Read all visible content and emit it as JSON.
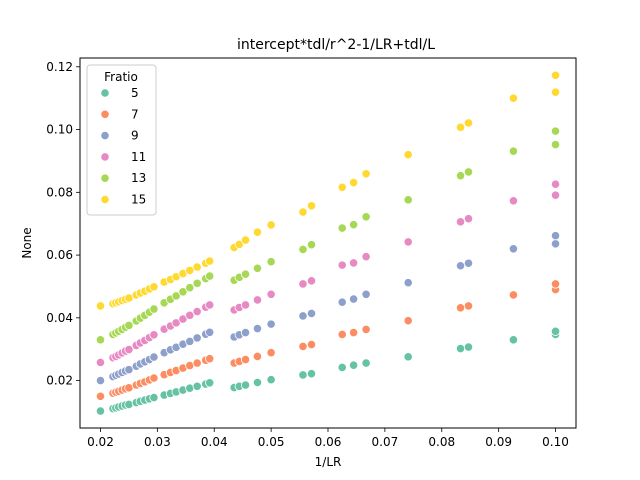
{
  "chart_data": {
    "type": "scatter",
    "title": "intercept*tdl/r^2-1/LR+tdl/L",
    "xlabel": "1/LR",
    "ylabel": "None",
    "xlim": [
      0.0164,
      0.1036
    ],
    "ylim": [
      0.0049,
      0.1228
    ],
    "x_ticks": [
      0.02,
      0.03,
      0.04,
      0.05,
      0.06,
      0.07,
      0.08,
      0.09,
      0.1
    ],
    "x_tick_labels": [
      "0.02",
      "0.03",
      "0.04",
      "0.05",
      "0.06",
      "0.07",
      "0.08",
      "0.09",
      "0.10"
    ],
    "y_ticks": [
      0.02,
      0.04,
      0.06,
      0.08,
      0.1,
      0.12
    ],
    "y_tick_labels": [
      "0.02",
      "0.04",
      "0.06",
      "0.08",
      "0.10",
      "0.12"
    ],
    "grid": false,
    "legend": {
      "title": "Fratio",
      "placement": "top-left"
    },
    "x": [
      0.02,
      0.0222,
      0.0227,
      0.0232,
      0.0238,
      0.0244,
      0.025,
      0.0263,
      0.027,
      0.0278,
      0.0286,
      0.0294,
      0.0312,
      0.0323,
      0.0333,
      0.0345,
      0.0357,
      0.037,
      0.0385,
      0.0392,
      0.0435,
      0.0444,
      0.0455,
      0.0476,
      0.05,
      0.0556,
      0.0571,
      0.0625,
      0.0645,
      0.0667,
      0.0741,
      0.0833,
      0.0847,
      0.0926,
      0.1,
      0.1
    ],
    "series": [
      {
        "name": "5",
        "color": "#66c2a5",
        "values": [
          0.0103,
          0.0111,
          0.0113,
          0.0116,
          0.0119,
          0.0122,
          0.0124,
          0.013,
          0.0134,
          0.0138,
          0.0142,
          0.0146,
          0.0154,
          0.0159,
          0.0164,
          0.017,
          0.0176,
          0.0182,
          0.0189,
          0.0193,
          0.0178,
          0.0182,
          0.0186,
          0.0194,
          0.0203,
          0.0218,
          0.0222,
          0.0242,
          0.0249,
          0.0256,
          0.0276,
          0.0302,
          0.0307,
          0.033,
          0.0347,
          0.0357
        ]
      },
      {
        "name": "7",
        "color": "#fc8d62",
        "values": [
          0.015,
          0.016,
          0.0163,
          0.0166,
          0.017,
          0.0174,
          0.0177,
          0.0186,
          0.0191,
          0.0196,
          0.0202,
          0.0208,
          0.0219,
          0.0226,
          0.0232,
          0.024,
          0.0248,
          0.0256,
          0.0265,
          0.027,
          0.0256,
          0.0261,
          0.0267,
          0.0277,
          0.0289,
          0.0309,
          0.0315,
          0.0347,
          0.0353,
          0.0363,
          0.0391,
          0.0432,
          0.0438,
          0.0473,
          0.049,
          0.0508
        ]
      },
      {
        "name": "9",
        "color": "#8da0cb",
        "values": [
          0.02,
          0.0213,
          0.0217,
          0.0221,
          0.0226,
          0.0231,
          0.0235,
          0.0246,
          0.0253,
          0.026,
          0.0267,
          0.0275,
          0.0289,
          0.0298,
          0.0306,
          0.0316,
          0.0325,
          0.0336,
          0.0348,
          0.0354,
          0.0339,
          0.0346,
          0.0353,
          0.0366,
          0.038,
          0.0406,
          0.0414,
          0.045,
          0.046,
          0.0475,
          0.0512,
          0.0566,
          0.0574,
          0.062,
          0.0636,
          0.0662
        ]
      },
      {
        "name": "11",
        "color": "#e78ac3",
        "values": [
          0.0258,
          0.0273,
          0.0277,
          0.0282,
          0.0288,
          0.0294,
          0.0299,
          0.0312,
          0.032,
          0.0328,
          0.0337,
          0.0346,
          0.0364,
          0.0374,
          0.0384,
          0.0396,
          0.0408,
          0.042,
          0.0434,
          0.0441,
          0.0425,
          0.0433,
          0.0441,
          0.0457,
          0.0475,
          0.0508,
          0.0518,
          0.0568,
          0.0575,
          0.0595,
          0.0642,
          0.0706,
          0.0716,
          0.0773,
          0.0791,
          0.0826
        ]
      },
      {
        "name": "13",
        "color": "#a6d854",
        "values": [
          0.033,
          0.0347,
          0.0352,
          0.0357,
          0.0363,
          0.037,
          0.0376,
          0.039,
          0.0399,
          0.0408,
          0.0418,
          0.0428,
          0.0448,
          0.0459,
          0.047,
          0.0483,
          0.0496,
          0.051,
          0.0525,
          0.0533,
          0.052,
          0.0529,
          0.0539,
          0.0558,
          0.0579,
          0.0618,
          0.0633,
          0.0686,
          0.0697,
          0.0722,
          0.0776,
          0.0853,
          0.0865,
          0.0931,
          0.0952,
          0.0995
        ]
      },
      {
        "name": "15",
        "color": "#ffd92f",
        "values": [
          0.0438,
          0.0445,
          0.0448,
          0.0451,
          0.0455,
          0.0459,
          0.0463,
          0.0473,
          0.0479,
          0.0485,
          0.0492,
          0.0499,
          0.0514,
          0.0522,
          0.0531,
          0.0541,
          0.0551,
          0.0562,
          0.0574,
          0.0581,
          0.0624,
          0.0634,
          0.0648,
          0.0673,
          0.0696,
          0.0737,
          0.0757,
          0.0816,
          0.0831,
          0.0859,
          0.092,
          0.1007,
          0.1021,
          0.11,
          0.1119,
          0.1173
        ]
      }
    ]
  }
}
